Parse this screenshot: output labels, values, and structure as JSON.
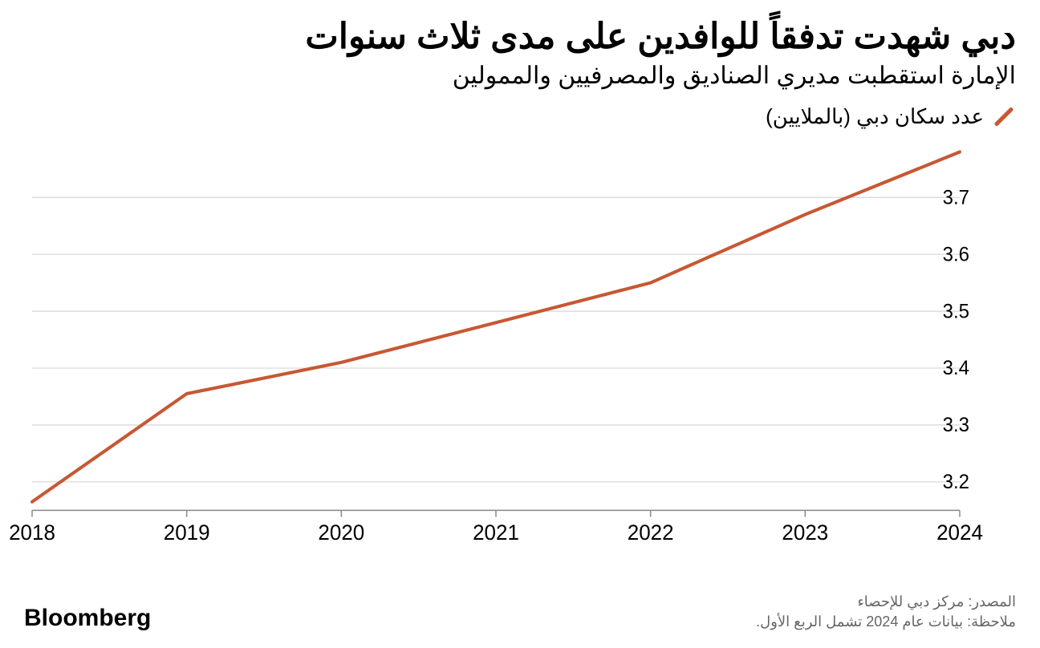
{
  "title": "دبي شهدت تدفقاً للوافدين على مدى ثلاث سنوات",
  "subtitle": "الإمارة استقطبت مديري الصناديق والمصرفيين والممولين",
  "legend": {
    "label": "عدد سكان دبي (بالملايين)"
  },
  "brand": "Bloomberg",
  "source": "المصدر: مركز دبي للإحصاء",
  "note": "ملاحظة: بيانات عام 2024 تشمل الربع الأول.",
  "chart": {
    "type": "line",
    "x": [
      2018,
      2019,
      2020,
      2021,
      2022,
      2023,
      2024
    ],
    "y": [
      3.165,
      3.355,
      3.41,
      3.48,
      3.55,
      3.67,
      3.78
    ],
    "xlim": [
      2018,
      2024
    ],
    "ylim": [
      3.15,
      3.8
    ],
    "yticks": [
      3.2,
      3.3,
      3.4,
      3.5,
      3.6,
      3.7
    ],
    "ytick_labels": [
      "3.2",
      "3.3",
      "3.4",
      "3.5",
      "3.6",
      "3.7"
    ],
    "xtick_labels": [
      "2018",
      "2019",
      "2020",
      "2021",
      "2022",
      "2023",
      "2024"
    ],
    "line_color": "#c75833",
    "line_width": 4,
    "grid_color": "#d0d0d0",
    "grid_width": 1,
    "axis_color": "#000000",
    "baseline_color": "#888888",
    "background": "#ffffff",
    "tick_fontsize_y": 24,
    "tick_fontsize_x": 26
  }
}
